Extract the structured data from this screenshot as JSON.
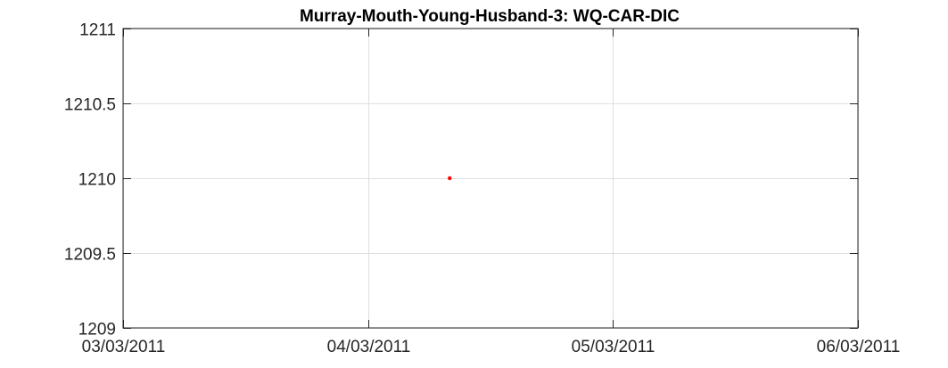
{
  "chart_data": {
    "type": "scatter",
    "title": "Murray-Mouth-Young-Husband-3: WQ-CAR-DIC",
    "xlabel": "",
    "ylabel": "",
    "x_axis_type": "date",
    "xlim": [
      "2011-03-03",
      "2011-03-06"
    ],
    "ylim": [
      1209,
      1211
    ],
    "x_ticks": [
      {
        "value": "2011-03-03",
        "label": "03/03/2011"
      },
      {
        "value": "2011-03-04",
        "label": "04/03/2011"
      },
      {
        "value": "2011-03-05",
        "label": "05/03/2011"
      },
      {
        "value": "2011-03-06",
        "label": "06/03/2011"
      }
    ],
    "y_ticks": [
      {
        "value": 1209,
        "label": "1209"
      },
      {
        "value": 1209.5,
        "label": "1209.5"
      },
      {
        "value": 1210,
        "label": "1210"
      },
      {
        "value": 1210.5,
        "label": "1210.5"
      },
      {
        "value": 1211,
        "label": "1211"
      }
    ],
    "grid": true,
    "series": [
      {
        "color": "#ff0000",
        "marker": "dot",
        "points": [
          {
            "x": "2011-03-04T08:00",
            "y": 1210
          }
        ]
      }
    ]
  }
}
